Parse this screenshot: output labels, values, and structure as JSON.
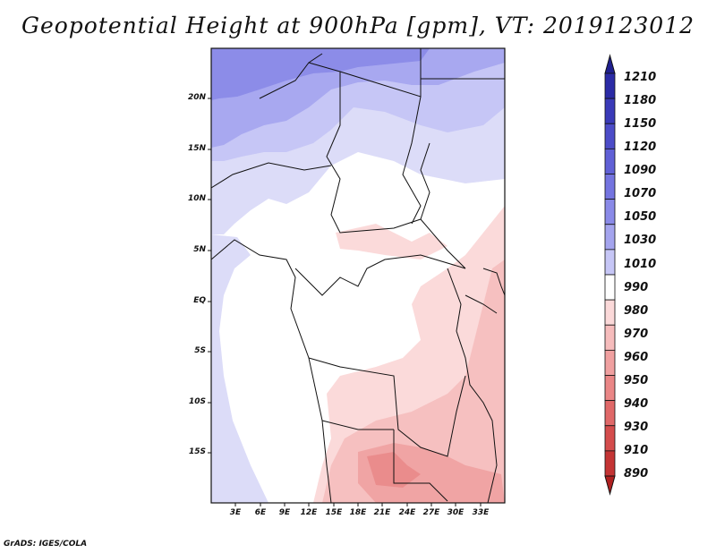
{
  "title": "Geopotential Height at 900hPa [gpm], VT: 2019123012",
  "footer": "GrADS: IGES/COLA",
  "map": {
    "region": "Central and Southern Africa",
    "lat_range": [
      -20,
      25
    ],
    "lon_range": [
      0,
      36
    ],
    "lat_ticks": [
      {
        "value": 20,
        "label": "20N"
      },
      {
        "value": 15,
        "label": "15N"
      },
      {
        "value": 10,
        "label": "10N"
      },
      {
        "value": 5,
        "label": "5N"
      },
      {
        "value": 0,
        "label": "EQ"
      },
      {
        "value": -5,
        "label": "5S"
      },
      {
        "value": -10,
        "label": "10S"
      },
      {
        "value": -15,
        "label": "15S"
      }
    ],
    "lon_ticks": [
      {
        "value": 3,
        "label": "3E"
      },
      {
        "value": 6,
        "label": "6E"
      },
      {
        "value": 9,
        "label": "9E"
      },
      {
        "value": 12,
        "label": "12E"
      },
      {
        "value": 15,
        "label": "15E"
      },
      {
        "value": 18,
        "label": "18E"
      },
      {
        "value": 21,
        "label": "21E"
      },
      {
        "value": 24,
        "label": "24E"
      },
      {
        "value": 27,
        "label": "27E"
      },
      {
        "value": 30,
        "label": "30E"
      },
      {
        "value": 33,
        "label": "33E"
      }
    ]
  },
  "colorbar": {
    "levels": [
      "1210",
      "1180",
      "1150",
      "1120",
      "1090",
      "1070",
      "1050",
      "1030",
      "1010",
      "990",
      "980",
      "970",
      "960",
      "950",
      "940",
      "930",
      "910",
      "890"
    ],
    "colors": [
      "#1f1f8f",
      "#2b2ba6",
      "#3a3ab8",
      "#4c4cc8",
      "#6060d6",
      "#7474e0",
      "#8a8ae8",
      "#a4a4ee",
      "#c6c6f6",
      "#ffffff",
      "#fbd9d9",
      "#f6bcbc",
      "#f0a0a0",
      "#ea8686",
      "#e06868",
      "#d44c4c",
      "#c43434",
      "#b02020"
    ]
  }
}
